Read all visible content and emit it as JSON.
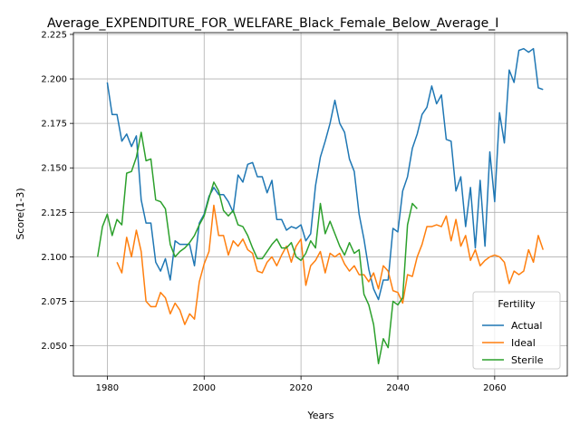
{
  "chart_data": {
    "type": "line",
    "title": "Average_EXPENDITURE_FOR_WELFARE_Black_Female_Below_Average_I",
    "xlabel": "Years",
    "ylabel": "Score(1-3)",
    "xlim": [
      1973,
      2075
    ],
    "ylim": [
      2.033,
      2.226
    ],
    "xticks": [
      1980,
      2000,
      2020,
      2040,
      2060
    ],
    "xtick_labels": [
      "1980",
      "2000",
      "2020",
      "2040",
      "2060"
    ],
    "yticks": [
      2.05,
      2.075,
      2.1,
      2.125,
      2.15,
      2.175,
      2.2,
      2.225
    ],
    "ytick_labels": [
      "2.050",
      "2.075",
      "2.100",
      "2.125",
      "2.150",
      "2.175",
      "2.200",
      "2.225"
    ],
    "grid": true,
    "legend": {
      "title": "Fertility",
      "placement": "lower right"
    },
    "series": [
      {
        "name": "Actual",
        "color": "#1f77b4",
        "x": [
          1980,
          1981,
          1982,
          1983,
          1984,
          1985,
          1986,
          1987,
          1988,
          1989,
          1990,
          1991,
          1992,
          1993,
          1994,
          1995,
          1996,
          1997,
          1998,
          1999,
          2000,
          2001,
          2002,
          2003,
          2004,
          2005,
          2006,
          2007,
          2008,
          2009,
          2010,
          2011,
          2012,
          2013,
          2014,
          2015,
          2016,
          2017,
          2018,
          2019,
          2020,
          2021,
          2022,
          2023,
          2024,
          2025,
          2026,
          2027,
          2028,
          2029,
          2030,
          2031,
          2032,
          2033,
          2034,
          2035,
          2036,
          2037,
          2038,
          2039,
          2040,
          2041,
          2042,
          2043,
          2044,
          2045,
          2046,
          2047,
          2048,
          2049,
          2050,
          2051,
          2052,
          2053,
          2054,
          2055,
          2056,
          2057,
          2058,
          2059,
          2060,
          2061,
          2062,
          2063,
          2064,
          2065,
          2066,
          2067,
          2068,
          2069,
          2070
        ],
        "y": [
          2.198,
          2.18,
          2.18,
          2.165,
          2.169,
          2.162,
          2.168,
          2.132,
          2.119,
          2.119,
          2.097,
          2.092,
          2.099,
          2.087,
          2.109,
          2.107,
          2.107,
          2.107,
          2.095,
          2.119,
          2.124,
          2.134,
          2.139,
          2.135,
          2.135,
          2.131,
          2.125,
          2.146,
          2.142,
          2.152,
          2.153,
          2.145,
          2.145,
          2.136,
          2.143,
          2.121,
          2.121,
          2.115,
          2.117,
          2.116,
          2.118,
          2.109,
          2.113,
          2.14,
          2.156,
          2.165,
          2.175,
          2.188,
          2.175,
          2.17,
          2.155,
          2.148,
          2.124,
          2.11,
          2.093,
          2.082,
          2.076,
          2.087,
          2.087,
          2.116,
          2.114,
          2.137,
          2.145,
          2.161,
          2.169,
          2.18,
          2.184,
          2.196,
          2.186,
          2.191,
          2.166,
          2.165,
          2.137,
          2.145,
          2.117,
          2.139,
          2.105,
          2.143,
          2.106,
          2.159,
          2.131,
          2.181,
          2.164,
          2.205,
          2.198,
          2.216,
          2.217,
          2.215,
          2.217,
          2.195,
          2.194
        ]
      },
      {
        "name": "Ideal",
        "color": "#ff7f0e",
        "x": [
          1982,
          1983,
          1984,
          1985,
          1986,
          1987,
          1988,
          1989,
          1990,
          1991,
          1992,
          1993,
          1994,
          1995,
          1996,
          1997,
          1998,
          1999,
          2000,
          2001,
          2002,
          2003,
          2004,
          2005,
          2006,
          2007,
          2008,
          2009,
          2010,
          2011,
          2012,
          2013,
          2014,
          2015,
          2016,
          2017,
          2018,
          2019,
          2020,
          2021,
          2022,
          2023,
          2024,
          2025,
          2026,
          2027,
          2028,
          2029,
          2030,
          2031,
          2032,
          2033,
          2034,
          2035,
          2036,
          2037,
          2038,
          2039,
          2040,
          2041,
          2042,
          2043,
          2044,
          2045,
          2046,
          2047,
          2048,
          2049,
          2050,
          2051,
          2052,
          2053,
          2054,
          2055,
          2056,
          2057,
          2058,
          2059,
          2060,
          2061,
          2062,
          2063,
          2064,
          2065,
          2066,
          2067,
          2068,
          2069,
          2070
        ],
        "y": [
          2.097,
          2.091,
          2.111,
          2.1,
          2.115,
          2.103,
          2.075,
          2.072,
          2.072,
          2.08,
          2.077,
          2.068,
          2.074,
          2.07,
          2.062,
          2.068,
          2.065,
          2.086,
          2.096,
          2.103,
          2.129,
          2.112,
          2.112,
          2.101,
          2.109,
          2.106,
          2.11,
          2.104,
          2.102,
          2.092,
          2.091,
          2.097,
          2.1,
          2.095,
          2.101,
          2.106,
          2.097,
          2.106,
          2.11,
          2.084,
          2.095,
          2.098,
          2.103,
          2.091,
          2.102,
          2.1,
          2.102,
          2.096,
          2.092,
          2.095,
          2.09,
          2.09,
          2.086,
          2.091,
          2.082,
          2.095,
          2.092,
          2.081,
          2.08,
          2.074,
          2.09,
          2.089,
          2.1,
          2.107,
          2.117,
          2.117,
          2.118,
          2.117,
          2.123,
          2.109,
          2.121,
          2.106,
          2.112,
          2.098,
          2.104,
          2.095,
          2.098,
          2.1,
          2.101,
          2.1,
          2.097,
          2.085,
          2.092,
          2.09,
          2.092,
          2.104,
          2.097,
          2.112,
          2.104
        ]
      },
      {
        "name": "Sterile",
        "color": "#2ca02c",
        "x": [
          1978,
          1979,
          1980,
          1981,
          1982,
          1983,
          1984,
          1985,
          1986,
          1987,
          1988,
          1989,
          1990,
          1991,
          1992,
          1993,
          1994,
          1995,
          1996,
          1997,
          1998,
          1999,
          2000,
          2001,
          2002,
          2003,
          2004,
          2005,
          2006,
          2007,
          2008,
          2009,
          2010,
          2011,
          2012,
          2013,
          2014,
          2015,
          2016,
          2017,
          2018,
          2019,
          2020,
          2021,
          2022,
          2023,
          2024,
          2025,
          2026,
          2027,
          2028,
          2029,
          2030,
          2031,
          2032,
          2033,
          2034,
          2035,
          2036,
          2037,
          2038,
          2039,
          2040,
          2041,
          2042,
          2043,
          2044
        ],
        "y": [
          2.1,
          2.117,
          2.124,
          2.112,
          2.121,
          2.118,
          2.147,
          2.148,
          2.156,
          2.17,
          2.154,
          2.155,
          2.132,
          2.131,
          2.127,
          2.107,
          2.1,
          2.103,
          2.105,
          2.108,
          2.112,
          2.118,
          2.123,
          2.133,
          2.142,
          2.137,
          2.126,
          2.123,
          2.126,
          2.118,
          2.117,
          2.112,
          2.105,
          2.099,
          2.099,
          2.103,
          2.107,
          2.11,
          2.105,
          2.105,
          2.108,
          2.1,
          2.098,
          2.102,
          2.109,
          2.105,
          2.13,
          2.113,
          2.12,
          2.113,
          2.106,
          2.101,
          2.108,
          2.102,
          2.104,
          2.079,
          2.073,
          2.062,
          2.04,
          2.054,
          2.049,
          2.075,
          2.073,
          2.077,
          2.118,
          2.13,
          2.127
        ]
      }
    ]
  }
}
